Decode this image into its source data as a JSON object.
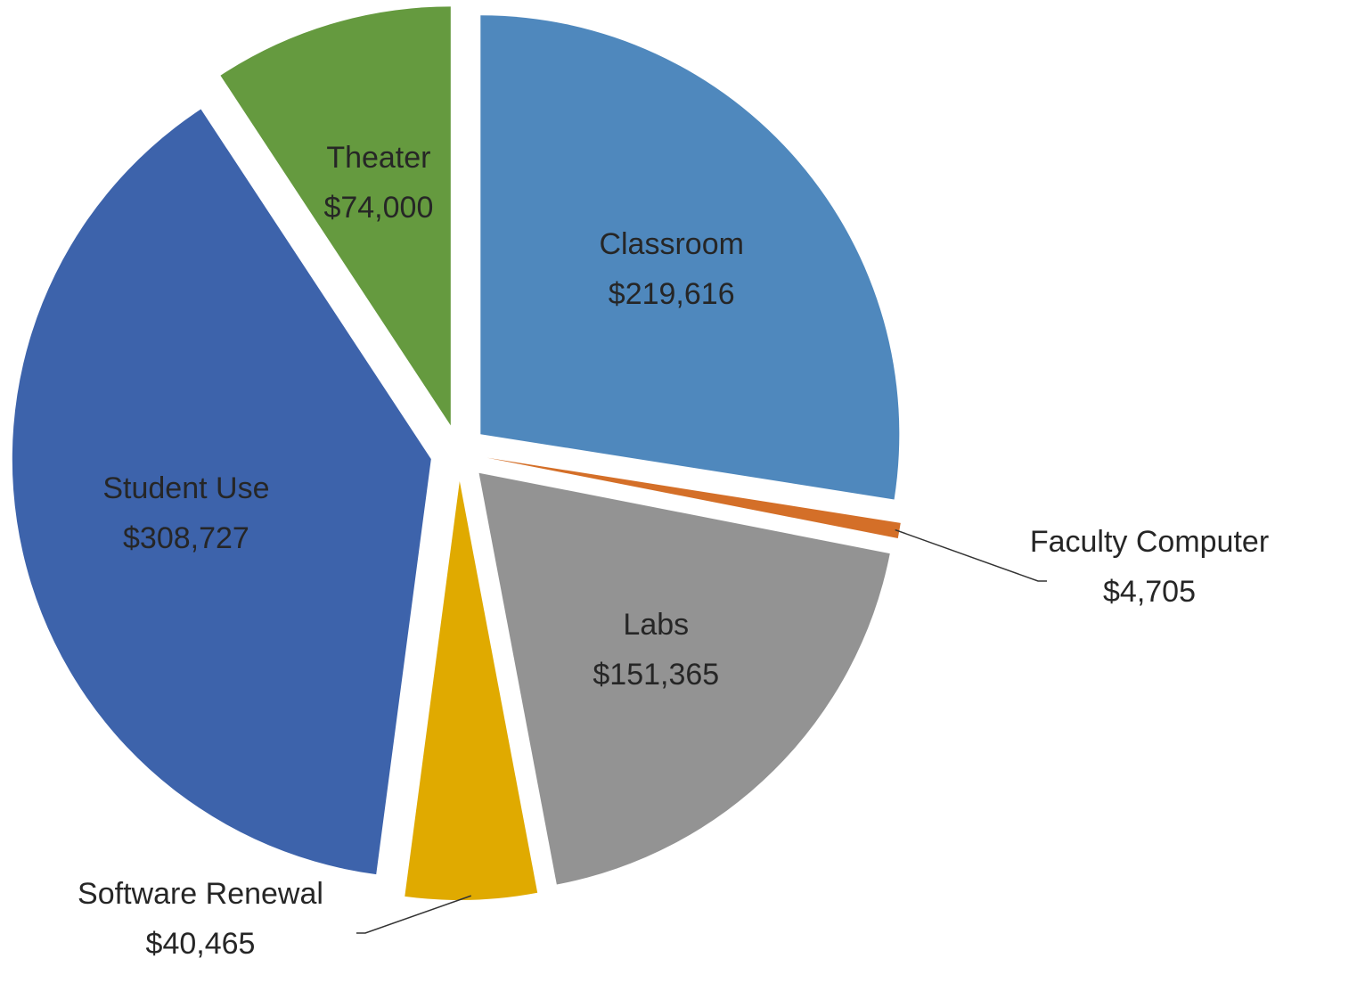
{
  "chart_data": {
    "type": "pie",
    "categories": [
      "Classroom",
      "Faculty Computer",
      "Labs",
      "Software Renewal",
      "Student Use",
      "Theater"
    ],
    "values": [
      219616,
      4705,
      151365,
      40465,
      308727,
      74000
    ],
    "value_labels": [
      "$219,616",
      "$4,705",
      "$151,365",
      "$40,465",
      "$308,727",
      "$74,000"
    ],
    "colors": [
      "#4f88bd",
      "#d46f28",
      "#939393",
      "#e0aa00",
      "#3d63ab",
      "#659a3f"
    ]
  }
}
